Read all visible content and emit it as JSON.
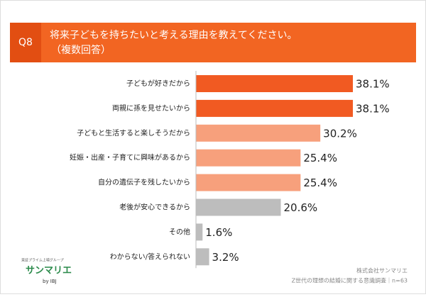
{
  "chart_data": {
    "type": "bar",
    "orientation": "horizontal",
    "question_label": "Q8",
    "title": "将来子どもを持ちたいと考える理由を教えてください。",
    "subtitle": "（複数回答）",
    "categories": [
      "子どもが好きだから",
      "両親に孫を見せたいから",
      "子どもと生活すると楽しそうだから",
      "妊娠・出産・子育てに興味があるから",
      "自分の遺伝子を残したいから",
      "老後が安心できるから",
      "その他",
      "わからない/答えられない"
    ],
    "values": [
      38.1,
      38.1,
      30.2,
      25.4,
      25.4,
      20.6,
      1.6,
      3.2
    ],
    "value_labels": [
      "38.1%",
      "38.1%",
      "30.2%",
      "25.4%",
      "25.4%",
      "20.6%",
      "1.6%",
      "3.2%"
    ],
    "colors": [
      "#f15a22",
      "#f15a22",
      "#f7a07c",
      "#f7a07c",
      "#f7a07c",
      "#bdbdbd",
      "#bdbdbd",
      "#bdbdbd"
    ],
    "logo": {
      "tagline": "東証プライム上場グループ",
      "name": "サンマリエ",
      "by": "by IBJ"
    },
    "footer": {
      "company": "株式会社サンマリエ",
      "source": "Z世代の理想の結婚に関する意識調査｜n=63"
    }
  }
}
